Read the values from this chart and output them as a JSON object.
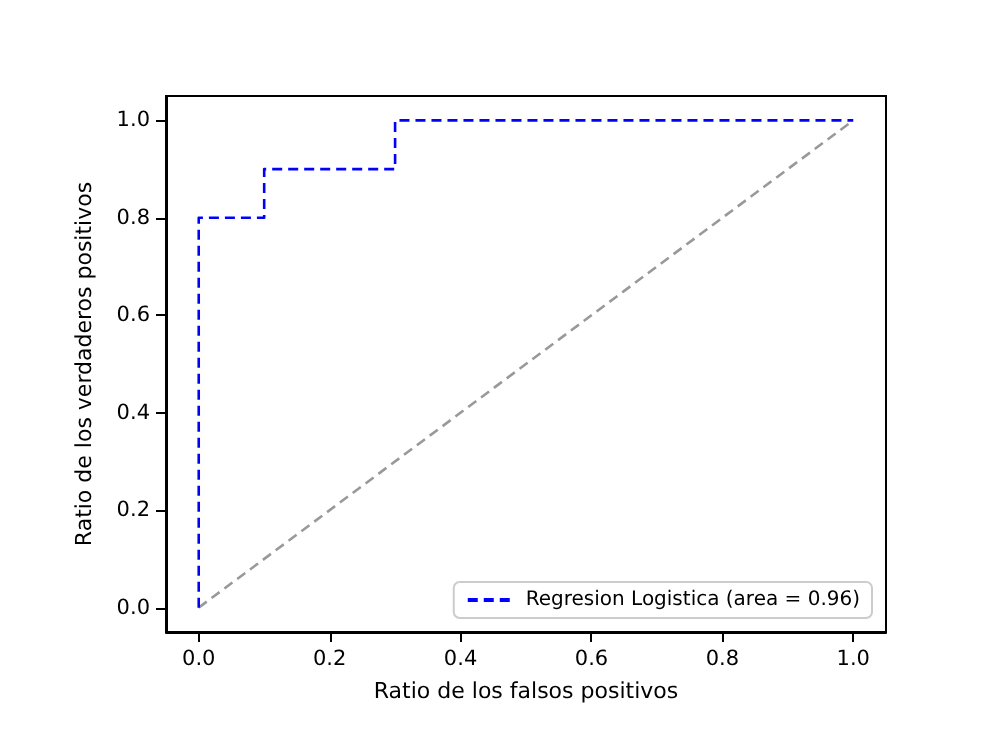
{
  "chart_data": {
    "type": "line",
    "xlabel": "Ratio de los falsos positivos",
    "ylabel": "Ratio de los verdaderos positivos",
    "xlim": [
      -0.05,
      1.05
    ],
    "ylim": [
      -0.05,
      1.05
    ],
    "xticks": [
      {
        "value": 0,
        "label": "0.0"
      },
      {
        "value": 0.2,
        "label": "0.2"
      },
      {
        "value": 0.4,
        "label": "0.4"
      },
      {
        "value": 0.6,
        "label": "0.6"
      },
      {
        "value": 0.8,
        "label": "0.8"
      },
      {
        "value": 1,
        "label": "1.0"
      }
    ],
    "yticks": [
      {
        "value": 0,
        "label": "0.0"
      },
      {
        "value": 0.2,
        "label": "0.2"
      },
      {
        "value": 0.4,
        "label": "0.4"
      },
      {
        "value": 0.6,
        "label": "0.6"
      },
      {
        "value": 0.8,
        "label": "0.8"
      },
      {
        "value": 1,
        "label": "1.0"
      }
    ],
    "series": [
      {
        "name": "Regresion Logistica (area = 0.96)",
        "color": "#0000ff",
        "x": [
          0,
          0,
          0.1,
          0.1,
          0.3,
          0.3,
          1
        ],
        "values": [
          0,
          0.8,
          0.8,
          0.9,
          0.9,
          1,
          1
        ]
      },
      {
        "color": "#999999",
        "x": [
          0,
          1
        ],
        "values": [
          0,
          1
        ]
      }
    ],
    "line_style": "dashed",
    "legend": "bottom right",
    "grid": false
  }
}
